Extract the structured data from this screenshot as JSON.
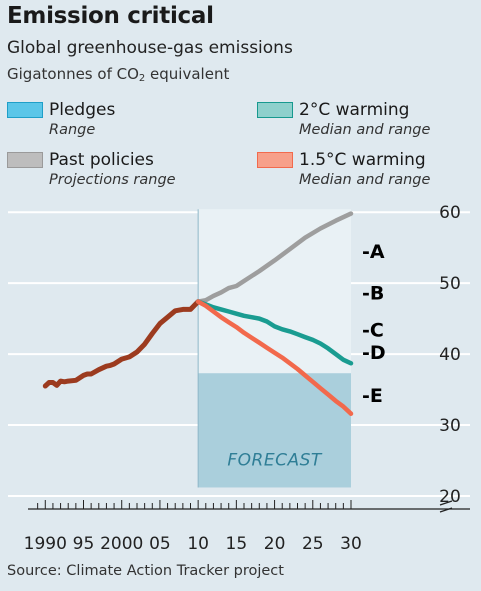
{
  "chart_data": {
    "type": "line",
    "title": "Emission critical",
    "subtitle": "Global greenhouse-gas emissions",
    "unit_prefix": "Gigatonnes of CO",
    "unit_subscript": "2",
    "unit_suffix": " equivalent",
    "legend": [
      {
        "name": "Pledges",
        "desc": "Range",
        "color": "#5bc6e8",
        "border": "#1f9fc8"
      },
      {
        "name": "2°C warming",
        "desc": "Median and range",
        "color": "#8ed0cc",
        "border": "#17998f"
      },
      {
        "name": "Past policies",
        "desc": "Projections range",
        "color": "#bdbdbd",
        "border": "#9a9a9a"
      },
      {
        "name": "1.5°C warming",
        "desc": "Median and range",
        "color": "#f7a08a",
        "border": "#f26a4d"
      }
    ],
    "forecast_label": "FORECAST",
    "forecast_start": 2010,
    "xlim": [
      1988,
      2030
    ],
    "ylim": [
      20,
      62
    ],
    "x_ticks": [
      1990,
      1995,
      2000,
      2005,
      2010,
      2015,
      2020,
      2025,
      2030
    ],
    "x_tick_labels": [
      "1990",
      "95",
      "2000",
      "05",
      "10",
      "15",
      "20",
      "25",
      "30"
    ],
    "y_ticks": [
      20,
      30,
      40,
      50,
      60
    ],
    "y_tick_labels": [
      "20",
      "30",
      "40",
      "50",
      "60"
    ],
    "series": [
      {
        "color": "#9c3b1f",
        "x": [
          1990,
          1990.5,
          1991,
          1991.5,
          1992,
          1992.5,
          1993,
          1994,
          1995,
          1995.5,
          1996,
          1997,
          1998,
          1998.5,
          1999,
          2000,
          2001,
          2002,
          2003,
          2004,
          2005,
          2006,
          2007,
          2008,
          2009,
          2010
        ],
        "values": [
          35.5,
          36,
          36,
          35.6,
          36.2,
          36.1,
          36.2,
          36.3,
          37,
          37.2,
          37.2,
          37.8,
          38.3,
          38.4,
          38.6,
          39.3,
          39.6,
          40.3,
          41.4,
          42.9,
          44.3,
          45.2,
          46.1,
          46.3,
          46.3,
          47.4
        ]
      },
      {
        "color": "#9e9e9e",
        "x": [
          2010,
          2011,
          2012,
          2013,
          2014,
          2015,
          2016,
          2018,
          2020,
          2022,
          2024,
          2026,
          2028,
          2030
        ],
        "values": [
          47.4,
          47.6,
          48.2,
          48.7,
          49.3,
          49.6,
          50.3,
          51.7,
          53.2,
          54.8,
          56.4,
          57.7,
          58.8,
          59.8
        ]
      },
      {
        "color": "#1a9c91",
        "x": [
          2010,
          2011,
          2012,
          2013,
          2014,
          2015,
          2016,
          2017,
          2018,
          2019,
          2020,
          2021,
          2022,
          2023,
          2024,
          2025,
          2026,
          2027,
          2028,
          2029,
          2030
        ],
        "values": [
          47.4,
          47.0,
          46.6,
          46.3,
          46.0,
          45.7,
          45.4,
          45.2,
          45.0,
          44.6,
          43.9,
          43.5,
          43.2,
          42.8,
          42.4,
          42.0,
          41.5,
          40.8,
          40.0,
          39.2,
          38.7
        ]
      },
      {
        "color": "#f2694c",
        "x": [
          2010,
          2011,
          2012,
          2013,
          2014,
          2015,
          2016,
          2017,
          2018,
          2019,
          2020,
          2021,
          2022,
          2023,
          2024,
          2025,
          2026,
          2027,
          2028,
          2029,
          2030
        ],
        "values": [
          47.4,
          46.8,
          46.0,
          45.2,
          44.5,
          43.8,
          43.0,
          42.3,
          41.6,
          40.9,
          40.2,
          39.5,
          38.7,
          37.9,
          37.0,
          36.1,
          35.2,
          34.3,
          33.4,
          32.6,
          31.6
        ]
      }
    ],
    "annotations": [
      {
        "text": "-A",
        "y": 54.5
      },
      {
        "text": "-B",
        "y": 48.7
      },
      {
        "text": "-C",
        "y": 43.5
      },
      {
        "text": "-D",
        "y": 40.3
      },
      {
        "text": "-E",
        "y": 34.2
      }
    ]
  },
  "source": "Source: Climate Action Tracker project"
}
